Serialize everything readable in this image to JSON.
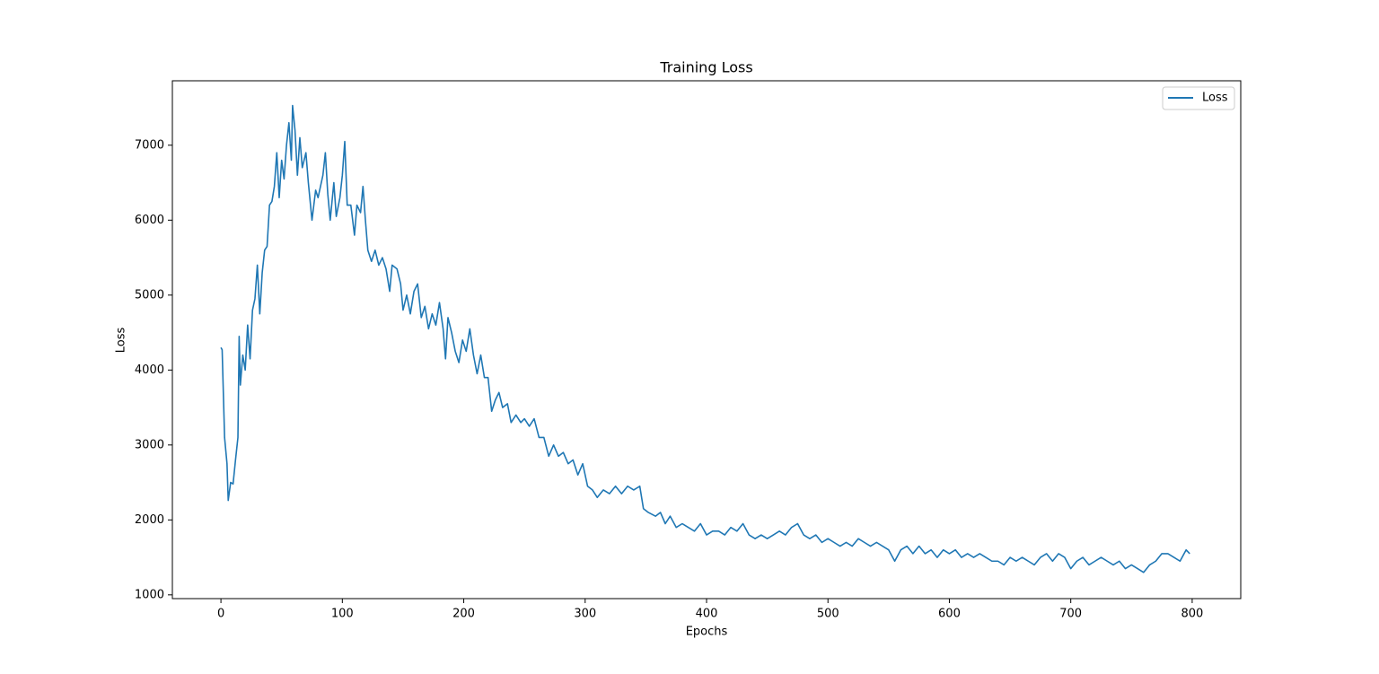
{
  "chart_data": {
    "type": "line",
    "title": "Training Loss",
    "x_label": "Epochs",
    "y_label": "Loss",
    "legend": "upper right",
    "xlim": [
      -40,
      840
    ],
    "ylim": [
      950,
      7860
    ],
    "xticks": [
      0,
      100,
      200,
      300,
      400,
      500,
      600,
      700,
      800
    ],
    "yticks": [
      1000,
      2000,
      3000,
      4000,
      5000,
      6000,
      7000
    ],
    "x": [
      0,
      1,
      3,
      5,
      6,
      8,
      10,
      12,
      14,
      15,
      16,
      18,
      20,
      22,
      24,
      26,
      28,
      30,
      32,
      34,
      36,
      38,
      40,
      42,
      44,
      46,
      48,
      50,
      52,
      54,
      56,
      58,
      59,
      61,
      63,
      65,
      67,
      70,
      72,
      75,
      78,
      80,
      84,
      86,
      88,
      90,
      93,
      95,
      98,
      100,
      102,
      104,
      107,
      110,
      112,
      115,
      117,
      119,
      121,
      124,
      127,
      130,
      133,
      136,
      139,
      141,
      145,
      148,
      150,
      153,
      156,
      159,
      162,
      165,
      168,
      171,
      174,
      177,
      180,
      183,
      185,
      187,
      190,
      193,
      196,
      199,
      202,
      205,
      208,
      211,
      214,
      217,
      220,
      223,
      226,
      229,
      232,
      236,
      239,
      243,
      247,
      250,
      254,
      258,
      262,
      266,
      270,
      274,
      278,
      282,
      286,
      290,
      294,
      298,
      302,
      306,
      310,
      315,
      320,
      325,
      330,
      335,
      340,
      345,
      348,
      352,
      358,
      362,
      366,
      370,
      375,
      380,
      385,
      390,
      395,
      400,
      405,
      410,
      415,
      420,
      425,
      430,
      435,
      440,
      445,
      450,
      455,
      460,
      465,
      470,
      475,
      480,
      485,
      490,
      495,
      500,
      505,
      510,
      515,
      520,
      525,
      530,
      535,
      540,
      545,
      550,
      555,
      560,
      565,
      570,
      575,
      580,
      585,
      590,
      595,
      600,
      605,
      610,
      615,
      620,
      625,
      630,
      635,
      640,
      645,
      650,
      655,
      660,
      665,
      670,
      675,
      680,
      685,
      690,
      695,
      700,
      705,
      710,
      715,
      720,
      725,
      730,
      735,
      740,
      745,
      750,
      755,
      760,
      765,
      770,
      775,
      780,
      785,
      790,
      795,
      798
    ],
    "series": [
      {
        "name": "Loss",
        "color": "#1f77b4",
        "values": [
          4300,
          4270,
          3100,
          2750,
          2260,
          2500,
          2480,
          2800,
          3100,
          4450,
          3800,
          4200,
          4000,
          4600,
          4150,
          4800,
          4950,
          5400,
          4750,
          5300,
          5600,
          5650,
          6200,
          6250,
          6450,
          6900,
          6300,
          6800,
          6550,
          7000,
          7300,
          6800,
          7530,
          7200,
          6600,
          7100,
          6700,
          6900,
          6500,
          6000,
          6400,
          6300,
          6600,
          6900,
          6350,
          6000,
          6500,
          6050,
          6300,
          6600,
          7050,
          6200,
          6200,
          5800,
          6200,
          6100,
          6450,
          6000,
          5600,
          5450,
          5600,
          5400,
          5500,
          5350,
          5050,
          5400,
          5350,
          5150,
          4800,
          5000,
          4750,
          5050,
          5150,
          4700,
          4850,
          4550,
          4750,
          4600,
          4900,
          4550,
          4150,
          4700,
          4500,
          4250,
          4100,
          4400,
          4250,
          4550,
          4200,
          3950,
          4200,
          3900,
          3900,
          3450,
          3600,
          3700,
          3500,
          3550,
          3300,
          3400,
          3300,
          3350,
          3250,
          3350,
          3100,
          3100,
          2850,
          3000,
          2850,
          2900,
          2750,
          2800,
          2600,
          2750,
          2450,
          2400,
          2300,
          2400,
          2350,
          2450,
          2350,
          2450,
          2400,
          2450,
          2150,
          2100,
          2050,
          2100,
          1950,
          2050,
          1900,
          1950,
          1900,
          1850,
          1950,
          1800,
          1850,
          1850,
          1800,
          1900,
          1850,
          1950,
          1800,
          1750,
          1800,
          1750,
          1800,
          1850,
          1800,
          1900,
          1950,
          1800,
          1750,
          1800,
          1700,
          1750,
          1700,
          1650,
          1700,
          1650,
          1750,
          1700,
          1650,
          1700,
          1650,
          1600,
          1450,
          1600,
          1650,
          1550,
          1650,
          1550,
          1600,
          1500,
          1600,
          1550,
          1600,
          1500,
          1550,
          1500,
          1550,
          1500,
          1450,
          1450,
          1400,
          1500,
          1450,
          1500,
          1450,
          1400,
          1500,
          1550,
          1450,
          1550,
          1500,
          1350,
          1450,
          1500,
          1400,
          1450,
          1500,
          1450,
          1400,
          1450,
          1350,
          1400,
          1350,
          1300,
          1400,
          1450,
          1550,
          1550,
          1500,
          1450,
          1600,
          1550
        ]
      }
    ]
  }
}
